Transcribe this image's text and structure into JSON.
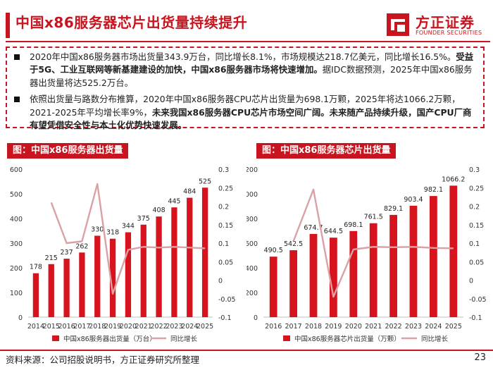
{
  "page": {
    "title": "中国x86服务器芯片出货量持续提升",
    "logo_cn": "方正证券",
    "logo_en": "FOUNDER SECURITIES",
    "footer": "资料来源：公司招股说明书，方正证券研究所整理",
    "page_number": "23"
  },
  "summary": {
    "b1_p1": "2020年中国x86服务器市场出货量343.9万台，同比增长8.1%，市场规模达218.7亿美元，同比增长16.5%。",
    "b1_bold": "受益于5G、工业互联网等新基建建设的加快，中国x86服务器市场将快速增加。",
    "b1_p2": "据IDC数据预测，2025年中国x86服务器出货量将达525.2万台。",
    "b2_p1": "依照出货量与路数分布推算，2020年中国x86服务器CPU芯片出货量为698.1万颗，2025年将达1066.2万颗，2021-2025年平均增长率9%，",
    "b2_bold": "未来我国x86服务器CPU芯片市场空间广阔。未来随产品持续升级，国产CPU厂商有望凭借安全性与本土化优势快速发展。"
  },
  "colors": {
    "brand": "#c8141e",
    "bar": "#d7141e",
    "line": "#dba0a4"
  },
  "chart_data": [
    {
      "type": "bar",
      "title": "图：中国x86服务器出货量",
      "categories": [
        "2014",
        "2015",
        "2016",
        "2017",
        "2018",
        "2019",
        "2020",
        "2021",
        "2022",
        "2023",
        "2024",
        "2025"
      ],
      "series": [
        {
          "name": "中国x86服务器出货量（万台）",
          "type": "bar",
          "axis": "left",
          "values": [
            178,
            215,
            237,
            262,
            330,
            318,
            344,
            375,
            408,
            445,
            484,
            525
          ],
          "labels": [
            "178",
            "215",
            "237",
            "262",
            "330",
            "318",
            "344",
            "375",
            "408",
            "445",
            "484",
            "525"
          ]
        },
        {
          "name": "同比增长",
          "type": "line",
          "axis": "right",
          "values": [
            null,
            0.21,
            0.1,
            0.105,
            0.26,
            -0.037,
            0.082,
            0.09,
            0.088,
            0.09,
            0.088,
            0.086
          ]
        }
      ],
      "ylim": [
        0,
        600
      ],
      "yticks": [
        "0",
        "100",
        "200",
        "300",
        "400",
        "500",
        "600"
      ],
      "y2lim": [
        -0.1,
        0.3
      ],
      "y2ticks": [
        "-0.1",
        "-0.05",
        "0",
        "0.05",
        "0.1",
        "0.15",
        "0.2",
        "0.25",
        "0.3"
      ]
    },
    {
      "type": "bar",
      "title": "图：中国x86服务器芯片出货量",
      "categories": [
        "2016",
        "2017",
        "2018",
        "2019",
        "2020",
        "2021",
        "2022",
        "2023",
        "2024",
        "2025"
      ],
      "series": [
        {
          "name": "中国x86服务器芯片出货量（万颗）",
          "type": "bar",
          "axis": "left",
          "values": [
            490.5,
            542.5,
            674.7,
            644.5,
            698.1,
            761.5,
            829.1,
            903.4,
            982.1,
            1066.2
          ],
          "labels": [
            "490.5",
            "542.5",
            "674.7",
            "644.5",
            "698.1",
            "761.5",
            "829.1",
            "903.4",
            "982.1",
            "1066.2"
          ]
        },
        {
          "name": "同比增长",
          "type": "line",
          "axis": "right",
          "values": [
            null,
            0.105,
            0.245,
            -0.045,
            0.083,
            0.09,
            0.089,
            0.09,
            0.087,
            0.086
          ]
        }
      ],
      "ylim": [
        0,
        1200
      ],
      "yticks": [
        "0",
        "200",
        "400",
        "600",
        "800",
        "1000",
        "1200"
      ],
      "y2lim": [
        -0.1,
        0.3
      ],
      "y2ticks": [
        "-0.1",
        "-0.05",
        "0",
        "0.05",
        "0.1",
        "0.15",
        "0.2",
        "0.25",
        "0.3"
      ]
    }
  ]
}
